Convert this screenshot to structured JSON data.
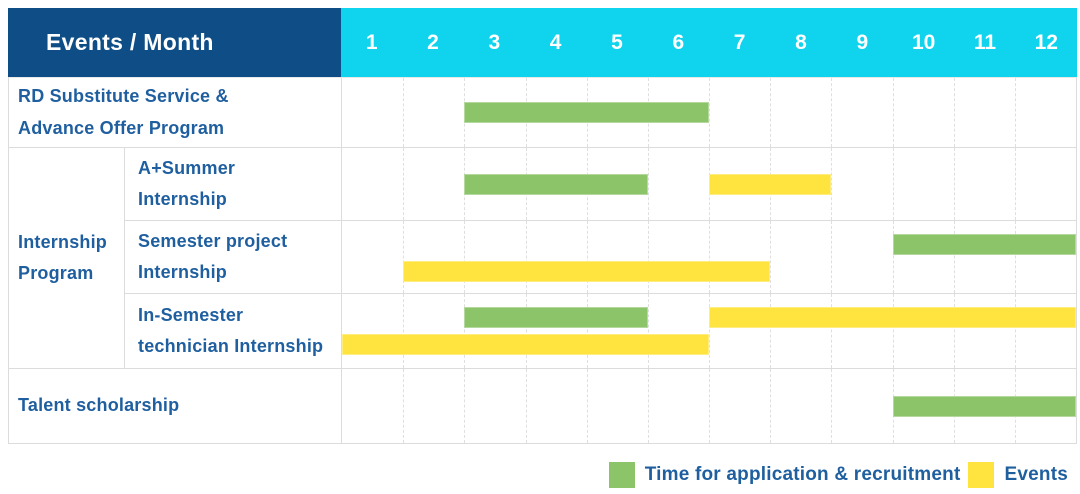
{
  "header": {
    "label": "Events / Month",
    "months": [
      "1",
      "2",
      "3",
      "4",
      "5",
      "6",
      "7",
      "8",
      "9",
      "10",
      "11",
      "12"
    ]
  },
  "colors": {
    "header_bg": "#0e4d85",
    "months_bg": "#10d4ee",
    "header_text": "#ffffff",
    "label_text": "#1f5f9f",
    "bar_green": "#8cc46a",
    "bar_yellow": "#ffe43f",
    "grid": "#dcdcdc"
  },
  "sections": [
    {
      "kind": "simple",
      "label": "RD Substitute Service &\nAdvance Offer Program",
      "bars": [
        {
          "color_key": "bar_green",
          "series": "Time for application & recruitment",
          "start": 3,
          "end": 6,
          "lane": "center"
        }
      ]
    },
    {
      "kind": "group",
      "label": "Internship\nProgram",
      "children": [
        {
          "label": "A+Summer\nInternship",
          "bars": [
            {
              "color_key": "bar_green",
              "series": "Time for application & recruitment",
              "start": 3,
              "end": 5,
              "lane": "center"
            },
            {
              "color_key": "bar_yellow",
              "series": "Events",
              "start": 7,
              "end": 8,
              "lane": "center"
            }
          ]
        },
        {
          "label": "Semester project\nInternship",
          "bars": [
            {
              "color_key": "bar_green",
              "series": "Time for application & recruitment",
              "start": 10,
              "end": 12,
              "lane": "top"
            },
            {
              "color_key": "bar_yellow",
              "series": "Events",
              "start": 2,
              "end": 7,
              "lane": "bottom"
            }
          ]
        },
        {
          "label": "In-Semester\ntechnician Internship",
          "bars": [
            {
              "color_key": "bar_green",
              "series": "Time for application & recruitment",
              "start": 3,
              "end": 5,
              "lane": "top"
            },
            {
              "color_key": "bar_yellow",
              "series": "Events",
              "start": 7,
              "end": 12,
              "lane": "top"
            },
            {
              "color_key": "bar_yellow",
              "series": "Events",
              "start": 1,
              "end": 6,
              "lane": "bottom"
            }
          ]
        }
      ]
    },
    {
      "kind": "simple",
      "label": "Talent scholarship",
      "bars": [
        {
          "color_key": "bar_green",
          "series": "Time for application & recruitment",
          "start": 10,
          "end": 12,
          "lane": "center"
        }
      ]
    }
  ],
  "legend": {
    "items": [
      {
        "color_key": "bar_green",
        "label": "Time for application & recruitment"
      },
      {
        "color_key": "bar_yellow",
        "label": "Events"
      }
    ]
  },
  "chart_data": {
    "type": "table",
    "subtype": "gantt",
    "title": "Events / Month",
    "x_axis": {
      "label": "Month",
      "ticks": [
        1,
        2,
        3,
        4,
        5,
        6,
        7,
        8,
        9,
        10,
        11,
        12
      ],
      "range": [
        1,
        12
      ]
    },
    "grid": true,
    "legend_position": "bottom-right",
    "series_names": [
      "Time for application & recruitment",
      "Events"
    ],
    "rows": [
      {
        "event": "RD Substitute Service & Advance Offer Program",
        "bars": [
          {
            "series": "Time for application & recruitment",
            "start_month": 3,
            "end_month": 6
          }
        ]
      },
      {
        "event": "Internship Program — A+Summer Internship",
        "bars": [
          {
            "series": "Time for application & recruitment",
            "start_month": 3,
            "end_month": 5
          },
          {
            "series": "Events",
            "start_month": 7,
            "end_month": 8
          }
        ]
      },
      {
        "event": "Internship Program — Semester project Internship",
        "bars": [
          {
            "series": "Time for application & recruitment",
            "start_month": 10,
            "end_month": 12
          },
          {
            "series": "Events",
            "start_month": 2,
            "end_month": 7
          }
        ]
      },
      {
        "event": "Internship Program — In-Semester technician Internship",
        "bars": [
          {
            "series": "Time for application & recruitment",
            "start_month": 3,
            "end_month": 5
          },
          {
            "series": "Events",
            "start_month": 7,
            "end_month": 12
          },
          {
            "series": "Events",
            "start_month": 1,
            "end_month": 6
          }
        ]
      },
      {
        "event": "Talent scholarship",
        "bars": [
          {
            "series": "Time for application & recruitment",
            "start_month": 10,
            "end_month": 12
          }
        ]
      }
    ]
  }
}
